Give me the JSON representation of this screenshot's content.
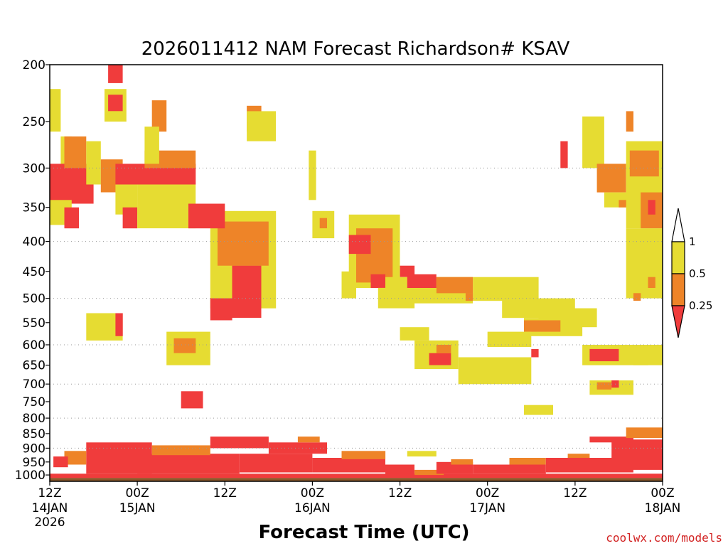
{
  "chart_data": {
    "type": "heatmap",
    "title": "2026011412 NAM Forecast Richardson# KSAV",
    "xlabel": "Forecast Time (UTC)",
    "credit": "coolwx.com/models",
    "y_axis": {
      "unit": "hPa",
      "range": [
        200,
        1025
      ],
      "ticks": [
        200,
        250,
        300,
        350,
        400,
        450,
        500,
        550,
        600,
        650,
        700,
        750,
        800,
        850,
        900,
        950,
        1000
      ]
    },
    "x_axis": {
      "range_hours": [
        0,
        84
      ],
      "ticks": [
        {
          "hour": 0,
          "label": "12Z",
          "date": "14JAN",
          "year": "2026"
        },
        {
          "hour": 12,
          "label": "00Z",
          "date": "15JAN",
          "year": ""
        },
        {
          "hour": 24,
          "label": "12Z",
          "date": "",
          "year": ""
        },
        {
          "hour": 36,
          "label": "00Z",
          "date": "16JAN",
          "year": ""
        },
        {
          "hour": 48,
          "label": "12Z",
          "date": "",
          "year": ""
        },
        {
          "hour": 60,
          "label": "00Z",
          "date": "17JAN",
          "year": ""
        },
        {
          "hour": 72,
          "label": "12Z",
          "date": "",
          "year": ""
        },
        {
          "hour": 84,
          "label": "00Z",
          "date": "18JAN",
          "year": ""
        }
      ]
    },
    "grid": {
      "horizontal_dotted": [
        300,
        400,
        500,
        600,
        700,
        800,
        900
      ],
      "vertical": false
    },
    "legend": {
      "placement": "right",
      "labels": [
        "1",
        "0.5",
        "0.25"
      ],
      "bins": [
        {
          "range": [
            0.5,
            1
          ],
          "color": "#e6dc32"
        },
        {
          "range": [
            0.25,
            0.5
          ],
          "color": "#ee8428"
        },
        {
          "range": [
            0,
            0.25
          ],
          "color": "#f03c3c"
        }
      ]
    },
    "colors": {
      "low": "#f03c3c",
      "mid": "#ee8428",
      "high": "#e6dc32",
      "ground": "#8b5a2b"
    },
    "regions": [
      {
        "h": [
          0,
          1.5
        ],
        "p": [
          220,
          260
        ],
        "bin": "high"
      },
      {
        "h": [
          1.5,
          3
        ],
        "p": [
          265,
          300
        ],
        "bin": "high"
      },
      {
        "h": [
          0,
          6
        ],
        "p": [
          295,
          345
        ],
        "bin": "low"
      },
      {
        "h": [
          2,
          5
        ],
        "p": [
          265,
          300
        ],
        "bin": "mid"
      },
      {
        "h": [
          0,
          3
        ],
        "p": [
          340,
          375
        ],
        "bin": "high"
      },
      {
        "h": [
          2,
          4
        ],
        "p": [
          350,
          380
        ],
        "bin": "low"
      },
      {
        "h": [
          5,
          7
        ],
        "p": [
          270,
          320
        ],
        "bin": "high"
      },
      {
        "h": [
          7,
          10
        ],
        "p": [
          290,
          330
        ],
        "bin": "mid"
      },
      {
        "h": [
          8,
          10
        ],
        "p": [
          200,
          215
        ],
        "bin": "low"
      },
      {
        "h": [
          7.5,
          10.5
        ],
        "p": [
          220,
          250
        ],
        "bin": "high"
      },
      {
        "h": [
          8,
          10
        ],
        "p": [
          225,
          240
        ],
        "bin": "low"
      },
      {
        "h": [
          9,
          20
        ],
        "p": [
          295,
          320
        ],
        "bin": "low"
      },
      {
        "h": [
          13,
          20
        ],
        "p": [
          280,
          300
        ],
        "bin": "mid"
      },
      {
        "h": [
          9,
          12
        ],
        "p": [
          320,
          360
        ],
        "bin": "high"
      },
      {
        "h": [
          10,
          12
        ],
        "p": [
          350,
          380
        ],
        "bin": "low"
      },
      {
        "h": [
          12,
          20
        ],
        "p": [
          320,
          380
        ],
        "bin": "high"
      },
      {
        "h": [
          14,
          16
        ],
        "p": [
          230,
          260
        ],
        "bin": "mid"
      },
      {
        "h": [
          13,
          15
        ],
        "p": [
          255,
          295
        ],
        "bin": "high"
      },
      {
        "h": [
          22,
          31
        ],
        "p": [
          355,
          520
        ],
        "bin": "high"
      },
      {
        "h": [
          23,
          30
        ],
        "p": [
          370,
          440
        ],
        "bin": "mid"
      },
      {
        "h": [
          25,
          29
        ],
        "p": [
          440,
          540
        ],
        "bin": "low"
      },
      {
        "h": [
          22,
          25
        ],
        "p": [
          500,
          545
        ],
        "bin": "low"
      },
      {
        "h": [
          19,
          24
        ],
        "p": [
          345,
          380
        ],
        "bin": "low"
      },
      {
        "h": [
          27,
          29
        ],
        "p": [
          235,
          260
        ],
        "bin": "mid"
      },
      {
        "h": [
          27,
          31
        ],
        "p": [
          240,
          270
        ],
        "bin": "high"
      },
      {
        "h": [
          16,
          22
        ],
        "p": [
          570,
          650
        ],
        "bin": "high"
      },
      {
        "h": [
          17,
          20
        ],
        "p": [
          585,
          620
        ],
        "bin": "mid"
      },
      {
        "h": [
          18,
          21
        ],
        "p": [
          720,
          770
        ],
        "bin": "low"
      },
      {
        "h": [
          5,
          10
        ],
        "p": [
          530,
          590
        ],
        "bin": "high"
      },
      {
        "h": [
          9,
          10
        ],
        "p": [
          530,
          580
        ],
        "bin": "low"
      },
      {
        "h": [
          36,
          39
        ],
        "p": [
          355,
          395
        ],
        "bin": "high"
      },
      {
        "h": [
          37,
          38
        ],
        "p": [
          365,
          380
        ],
        "bin": "mid"
      },
      {
        "h": [
          35.5,
          36.5
        ],
        "p": [
          280,
          340
        ],
        "bin": "high"
      },
      {
        "h": [
          41,
          48
        ],
        "p": [
          360,
          480
        ],
        "bin": "high"
      },
      {
        "h": [
          42,
          47
        ],
        "p": [
          380,
          470
        ],
        "bin": "mid"
      },
      {
        "h": [
          41,
          44
        ],
        "p": [
          390,
          420
        ],
        "bin": "low"
      },
      {
        "h": [
          44,
          46
        ],
        "p": [
          455,
          480
        ],
        "bin": "low"
      },
      {
        "h": [
          40,
          42
        ],
        "p": [
          450,
          500
        ],
        "bin": "high"
      },
      {
        "h": [
          45,
          50
        ],
        "p": [
          480,
          520
        ],
        "bin": "high"
      },
      {
        "h": [
          46,
          58
        ],
        "p": [
          460,
          510
        ],
        "bin": "high"
      },
      {
        "h": [
          49,
          53
        ],
        "p": [
          455,
          480
        ],
        "bin": "low"
      },
      {
        "h": [
          53,
          58
        ],
        "p": [
          460,
          490
        ],
        "bin": "mid"
      },
      {
        "h": [
          48,
          50
        ],
        "p": [
          440,
          460
        ],
        "bin": "low"
      },
      {
        "h": [
          58,
          67
        ],
        "p": [
          460,
          505
        ],
        "bin": "high"
      },
      {
        "h": [
          57,
          58
        ],
        "p": [
          490,
          505
        ],
        "bin": "mid"
      },
      {
        "h": [
          62,
          72
        ],
        "p": [
          500,
          540
        ],
        "bin": "high"
      },
      {
        "h": [
          67,
          75
        ],
        "p": [
          520,
          560
        ],
        "bin": "high"
      },
      {
        "h": [
          65,
          73
        ],
        "p": [
          540,
          580
        ],
        "bin": "high"
      },
      {
        "h": [
          65,
          70
        ],
        "p": [
          545,
          570
        ],
        "bin": "mid"
      },
      {
        "h": [
          60,
          66
        ],
        "p": [
          570,
          605
        ],
        "bin": "high"
      },
      {
        "h": [
          48,
          52
        ],
        "p": [
          560,
          590
        ],
        "bin": "high"
      },
      {
        "h": [
          50,
          56
        ],
        "p": [
          590,
          660
        ],
        "bin": "high"
      },
      {
        "h": [
          52,
          55
        ],
        "p": [
          620,
          650
        ],
        "bin": "low"
      },
      {
        "h": [
          53,
          55
        ],
        "p": [
          600,
          620
        ],
        "bin": "mid"
      },
      {
        "h": [
          56,
          66
        ],
        "p": [
          630,
          700
        ],
        "bin": "high"
      },
      {
        "h": [
          66,
          67
        ],
        "p": [
          610,
          630
        ],
        "bin": "low"
      },
      {
        "h": [
          73,
          82
        ],
        "p": [
          600,
          650
        ],
        "bin": "high"
      },
      {
        "h": [
          74,
          78
        ],
        "p": [
          610,
          640
        ],
        "bin": "low"
      },
      {
        "h": [
          82,
          84
        ],
        "p": [
          620,
          640
        ],
        "bin": "low"
      },
      {
        "h": [
          80,
          84
        ],
        "p": [
          600,
          650
        ],
        "bin": "high"
      },
      {
        "h": [
          74,
          80
        ],
        "p": [
          690,
          730
        ],
        "bin": "high"
      },
      {
        "h": [
          75,
          77
        ],
        "p": [
          695,
          715
        ],
        "bin": "mid"
      },
      {
        "h": [
          77,
          78
        ],
        "p": [
          690,
          710
        ],
        "bin": "low"
      },
      {
        "h": [
          65,
          69
        ],
        "p": [
          760,
          790
        ],
        "bin": "high"
      },
      {
        "h": [
          73,
          76
        ],
        "p": [
          245,
          300
        ],
        "bin": "high"
      },
      {
        "h": [
          75,
          79
        ],
        "p": [
          295,
          330
        ],
        "bin": "mid"
      },
      {
        "h": [
          76,
          80
        ],
        "p": [
          330,
          350
        ],
        "bin": "high"
      },
      {
        "h": [
          78,
          80
        ],
        "p": [
          340,
          350
        ],
        "bin": "mid"
      },
      {
        "h": [
          79,
          84
        ],
        "p": [
          270,
          380
        ],
        "bin": "high"
      },
      {
        "h": [
          79.5,
          83.5
        ],
        "p": [
          280,
          310
        ],
        "bin": "mid"
      },
      {
        "h": [
          81,
          84
        ],
        "p": [
          330,
          380
        ],
        "bin": "mid"
      },
      {
        "h": [
          82,
          83
        ],
        "p": [
          340,
          360
        ],
        "bin": "low"
      },
      {
        "h": [
          79,
          80
        ],
        "p": [
          240,
          260
        ],
        "bin": "mid"
      },
      {
        "h": [
          70,
          71
        ],
        "p": [
          270,
          300
        ],
        "bin": "low"
      },
      {
        "h": [
          79,
          84
        ],
        "p": [
          380,
          500
        ],
        "bin": "high"
      },
      {
        "h": [
          82,
          83
        ],
        "p": [
          460,
          480
        ],
        "bin": "mid"
      },
      {
        "h": [
          80,
          81
        ],
        "p": [
          490,
          505
        ],
        "bin": "mid"
      },
      {
        "h": [
          0,
          84
        ],
        "p": [
          995,
          1012
        ],
        "bin": "low"
      },
      {
        "h": [
          5,
          14
        ],
        "p": [
          880,
          995
        ],
        "bin": "low"
      },
      {
        "h": [
          2,
          5
        ],
        "p": [
          910,
          960
        ],
        "bin": "mid"
      },
      {
        "h": [
          0.5,
          2.5
        ],
        "p": [
          930,
          970
        ],
        "bin": "low"
      },
      {
        "h": [
          12,
          26
        ],
        "p": [
          920,
          995
        ],
        "bin": "low"
      },
      {
        "h": [
          14,
          22
        ],
        "p": [
          890,
          925
        ],
        "bin": "mid"
      },
      {
        "h": [
          22,
          30
        ],
        "p": [
          860,
          900
        ],
        "bin": "low"
      },
      {
        "h": [
          26,
          36
        ],
        "p": [
          920,
          990
        ],
        "bin": "low"
      },
      {
        "h": [
          30,
          38
        ],
        "p": [
          880,
          920
        ],
        "bin": "low"
      },
      {
        "h": [
          34,
          37
        ],
        "p": [
          860,
          880
        ],
        "bin": "mid"
      },
      {
        "h": [
          36,
          46
        ],
        "p": [
          935,
          990
        ],
        "bin": "low"
      },
      {
        "h": [
          40,
          46
        ],
        "p": [
          910,
          940
        ],
        "bin": "mid"
      },
      {
        "h": [
          46,
          50
        ],
        "p": [
          960,
          1000
        ],
        "bin": "low"
      },
      {
        "h": [
          50,
          54
        ],
        "p": [
          980,
          1000
        ],
        "bin": "mid"
      },
      {
        "h": [
          53,
          58
        ],
        "p": [
          950,
          995
        ],
        "bin": "low"
      },
      {
        "h": [
          55,
          58
        ],
        "p": [
          940,
          960
        ],
        "bin": "mid"
      },
      {
        "h": [
          49,
          53
        ],
        "p": [
          910,
          930
        ],
        "bin": "high"
      },
      {
        "h": [
          58,
          68
        ],
        "p": [
          960,
          995
        ],
        "bin": "low"
      },
      {
        "h": [
          63,
          68
        ],
        "p": [
          935,
          960
        ],
        "bin": "mid"
      },
      {
        "h": [
          68,
          80
        ],
        "p": [
          935,
          990
        ],
        "bin": "low"
      },
      {
        "h": [
          71,
          74
        ],
        "p": [
          920,
          935
        ],
        "bin": "mid"
      },
      {
        "h": [
          77,
          84
        ],
        "p": [
          870,
          980
        ],
        "bin": "low"
      },
      {
        "h": [
          74,
          80
        ],
        "p": [
          860,
          880
        ],
        "bin": "low"
      },
      {
        "h": [
          79,
          84
        ],
        "p": [
          830,
          865
        ],
        "bin": "mid"
      }
    ]
  }
}
